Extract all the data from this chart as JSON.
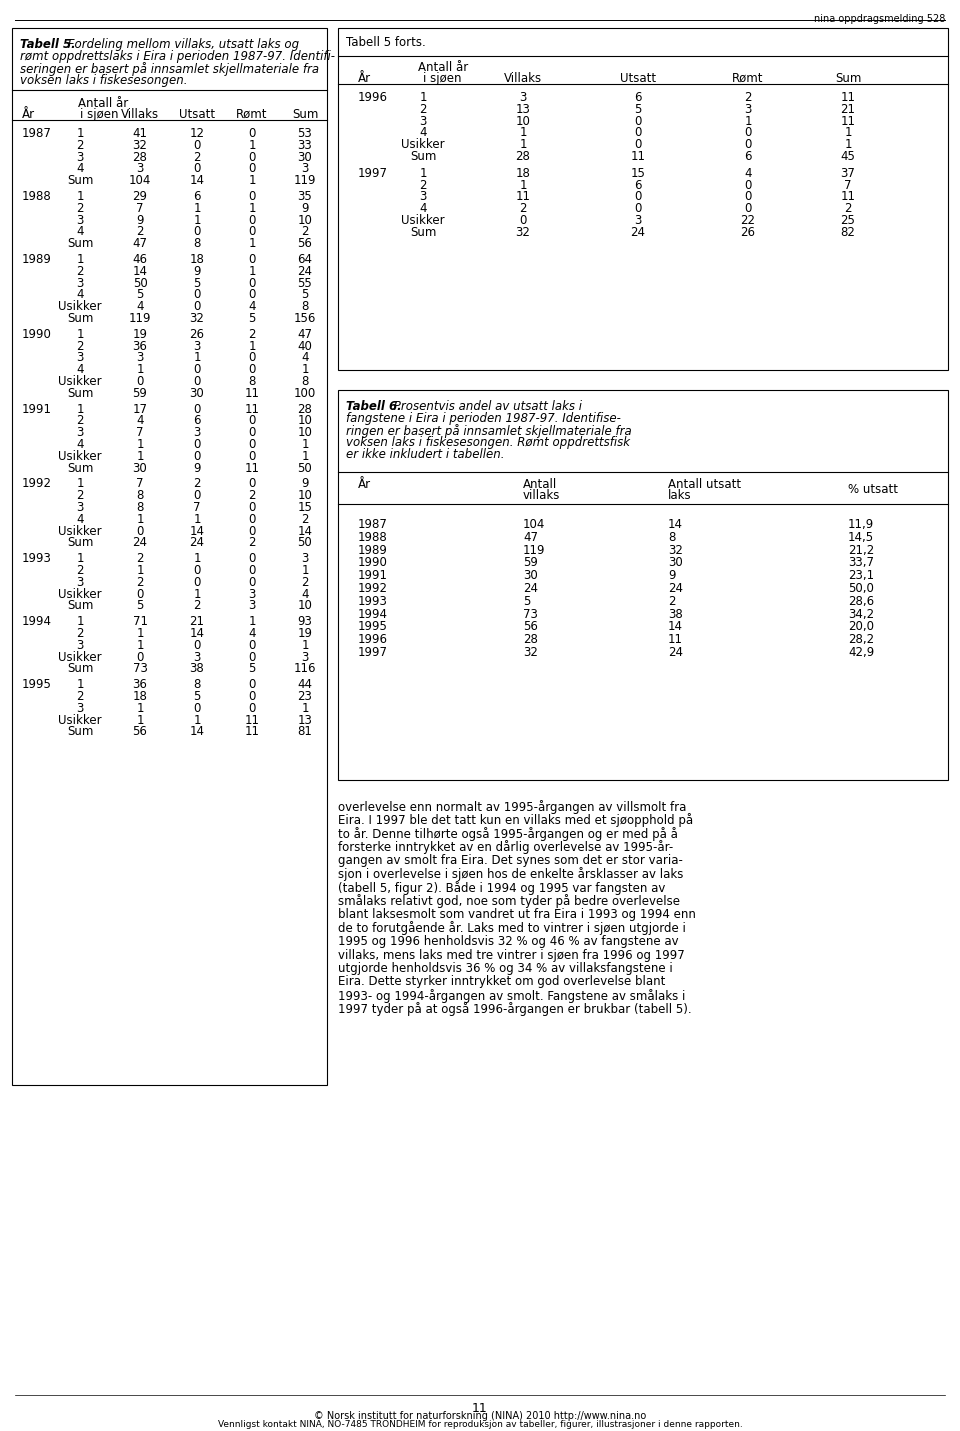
{
  "page_header": "nina oppdragsmelding 528",
  "page_number": "11",
  "footer_line1": "© Norsk institutt for naturforskning (NINA) 2010 http://www.nina.no",
  "footer_line2": "Vennligst kontakt NINA, NO-7485 TRONDHEIM for reproduksjon av tabeller, figurer, illustrasjoner i denne rapporten.",
  "table5_title_bold": "Tabell 5.",
  "table5_title_italic_lines": [
    " Fordeling mellom villaks, utsatt laks og",
    "rømt oppdrettslaks i Eira i perioden 1987-97. Identifi-",
    "seringen er basert på innsamlet skjellmateriale fra",
    "voksen laks i fiskesesongen."
  ],
  "table5_col_header_antall": "Antall år",
  "table5_col_header_i_sjoen": "i sjøen",
  "table5_col_header_villaks": "Villaks",
  "table5_col_header_utsatt": "Utsatt",
  "table5_col_header_romt": "Rømt",
  "table5_col_header_sum": "Sum",
  "table5_col_header_ar": "År",
  "table5_data": [
    {
      "year": "1987",
      "rows": [
        {
          "sjo": "1",
          "villaks": "41",
          "utsatt": "12",
          "romt": "0",
          "sum": "53"
        },
        {
          "sjo": "2",
          "villaks": "32",
          "utsatt": "0",
          "romt": "1",
          "sum": "33"
        },
        {
          "sjo": "3",
          "villaks": "28",
          "utsatt": "2",
          "romt": "0",
          "sum": "30"
        },
        {
          "sjo": "4",
          "villaks": "3",
          "utsatt": "0",
          "romt": "0",
          "sum": "3"
        }
      ],
      "sum": {
        "villaks": "104",
        "utsatt": "14",
        "romt": "1",
        "sum": "119"
      },
      "usikker": null
    },
    {
      "year": "1988",
      "rows": [
        {
          "sjo": "1",
          "villaks": "29",
          "utsatt": "6",
          "romt": "0",
          "sum": "35"
        },
        {
          "sjo": "2",
          "villaks": "7",
          "utsatt": "1",
          "romt": "1",
          "sum": "9"
        },
        {
          "sjo": "3",
          "villaks": "9",
          "utsatt": "1",
          "romt": "0",
          "sum": "10"
        },
        {
          "sjo": "4",
          "villaks": "2",
          "utsatt": "0",
          "romt": "0",
          "sum": "2"
        }
      ],
      "sum": {
        "villaks": "47",
        "utsatt": "8",
        "romt": "1",
        "sum": "56"
      },
      "usikker": null
    },
    {
      "year": "1989",
      "rows": [
        {
          "sjo": "1",
          "villaks": "46",
          "utsatt": "18",
          "romt": "0",
          "sum": "64"
        },
        {
          "sjo": "2",
          "villaks": "14",
          "utsatt": "9",
          "romt": "1",
          "sum": "24"
        },
        {
          "sjo": "3",
          "villaks": "50",
          "utsatt": "5",
          "romt": "0",
          "sum": "55"
        },
        {
          "sjo": "4",
          "villaks": "5",
          "utsatt": "0",
          "romt": "0",
          "sum": "5"
        }
      ],
      "sum": {
        "villaks": "119",
        "utsatt": "32",
        "romt": "5",
        "sum": "156"
      },
      "usikker": {
        "villaks": "4",
        "utsatt": "0",
        "romt": "4",
        "sum": "8"
      }
    },
    {
      "year": "1990",
      "rows": [
        {
          "sjo": "1",
          "villaks": "19",
          "utsatt": "26",
          "romt": "2",
          "sum": "47"
        },
        {
          "sjo": "2",
          "villaks": "36",
          "utsatt": "3",
          "romt": "1",
          "sum": "40"
        },
        {
          "sjo": "3",
          "villaks": "3",
          "utsatt": "1",
          "romt": "0",
          "sum": "4"
        },
        {
          "sjo": "4",
          "villaks": "1",
          "utsatt": "0",
          "romt": "0",
          "sum": "1"
        }
      ],
      "sum": {
        "villaks": "59",
        "utsatt": "30",
        "romt": "11",
        "sum": "100"
      },
      "usikker": {
        "villaks": "0",
        "utsatt": "0",
        "romt": "8",
        "sum": "8"
      }
    },
    {
      "year": "1991",
      "rows": [
        {
          "sjo": "1",
          "villaks": "17",
          "utsatt": "0",
          "romt": "11",
          "sum": "28"
        },
        {
          "sjo": "2",
          "villaks": "4",
          "utsatt": "6",
          "romt": "0",
          "sum": "10"
        },
        {
          "sjo": "3",
          "villaks": "7",
          "utsatt": "3",
          "romt": "0",
          "sum": "10"
        },
        {
          "sjo": "4",
          "villaks": "1",
          "utsatt": "0",
          "romt": "0",
          "sum": "1"
        }
      ],
      "sum": {
        "villaks": "30",
        "utsatt": "9",
        "romt": "11",
        "sum": "50"
      },
      "usikker": {
        "villaks": "1",
        "utsatt": "0",
        "romt": "0",
        "sum": "1"
      }
    },
    {
      "year": "1992",
      "rows": [
        {
          "sjo": "1",
          "villaks": "7",
          "utsatt": "2",
          "romt": "0",
          "sum": "9"
        },
        {
          "sjo": "2",
          "villaks": "8",
          "utsatt": "0",
          "romt": "2",
          "sum": "10"
        },
        {
          "sjo": "3",
          "villaks": "8",
          "utsatt": "7",
          "romt": "0",
          "sum": "15"
        },
        {
          "sjo": "4",
          "villaks": "1",
          "utsatt": "1",
          "romt": "0",
          "sum": "2"
        }
      ],
      "sum": {
        "villaks": "24",
        "utsatt": "24",
        "romt": "2",
        "sum": "50"
      },
      "usikker": {
        "villaks": "0",
        "utsatt": "14",
        "romt": "0",
        "sum": "14"
      }
    },
    {
      "year": "1993",
      "rows": [
        {
          "sjo": "1",
          "villaks": "2",
          "utsatt": "1",
          "romt": "0",
          "sum": "3"
        },
        {
          "sjo": "2",
          "villaks": "1",
          "utsatt": "0",
          "romt": "0",
          "sum": "1"
        },
        {
          "sjo": "3",
          "villaks": "2",
          "utsatt": "0",
          "romt": "0",
          "sum": "2"
        }
      ],
      "sum": {
        "villaks": "5",
        "utsatt": "2",
        "romt": "3",
        "sum": "10"
      },
      "usikker": {
        "villaks": "0",
        "utsatt": "1",
        "romt": "3",
        "sum": "4"
      }
    },
    {
      "year": "1994",
      "rows": [
        {
          "sjo": "1",
          "villaks": "71",
          "utsatt": "21",
          "romt": "1",
          "sum": "93"
        },
        {
          "sjo": "2",
          "villaks": "1",
          "utsatt": "14",
          "romt": "4",
          "sum": "19"
        },
        {
          "sjo": "3",
          "villaks": "1",
          "utsatt": "0",
          "romt": "0",
          "sum": "1"
        }
      ],
      "sum": {
        "villaks": "73",
        "utsatt": "38",
        "romt": "5",
        "sum": "116"
      },
      "usikker": {
        "villaks": "0",
        "utsatt": "3",
        "romt": "0",
        "sum": "3"
      }
    },
    {
      "year": "1995",
      "rows": [
        {
          "sjo": "1",
          "villaks": "36",
          "utsatt": "8",
          "romt": "0",
          "sum": "44"
        },
        {
          "sjo": "2",
          "villaks": "18",
          "utsatt": "5",
          "romt": "0",
          "sum": "23"
        },
        {
          "sjo": "3",
          "villaks": "1",
          "utsatt": "0",
          "romt": "0",
          "sum": "1"
        }
      ],
      "sum": {
        "villaks": "56",
        "utsatt": "14",
        "romt": "11",
        "sum": "81"
      },
      "usikker": {
        "villaks": "1",
        "utsatt": "1",
        "romt": "11",
        "sum": "13"
      }
    }
  ],
  "table5forts_title": "Tabell 5 forts.",
  "table5forts_data": [
    {
      "year": "1996",
      "rows": [
        {
          "sjo": "1",
          "villaks": "3",
          "utsatt": "6",
          "romt": "2",
          "sum": "11"
        },
        {
          "sjo": "2",
          "villaks": "13",
          "utsatt": "5",
          "romt": "3",
          "sum": "21"
        },
        {
          "sjo": "3",
          "villaks": "10",
          "utsatt": "0",
          "romt": "1",
          "sum": "11"
        },
        {
          "sjo": "4",
          "villaks": "1",
          "utsatt": "0",
          "romt": "0",
          "sum": "1"
        }
      ],
      "sum": {
        "villaks": "28",
        "utsatt": "11",
        "romt": "6",
        "sum": "45"
      },
      "usikker": {
        "villaks": "1",
        "utsatt": "0",
        "romt": "0",
        "sum": "1"
      }
    },
    {
      "year": "1997",
      "rows": [
        {
          "sjo": "1",
          "villaks": "18",
          "utsatt": "15",
          "romt": "4",
          "sum": "37"
        },
        {
          "sjo": "2",
          "villaks": "1",
          "utsatt": "6",
          "romt": "0",
          "sum": "7"
        },
        {
          "sjo": "3",
          "villaks": "11",
          "utsatt": "0",
          "romt": "0",
          "sum": "11"
        },
        {
          "sjo": "4",
          "villaks": "2",
          "utsatt": "0",
          "romt": "0",
          "sum": "2"
        }
      ],
      "sum": {
        "villaks": "32",
        "utsatt": "24",
        "romt": "26",
        "sum": "82"
      },
      "usikker": {
        "villaks": "0",
        "utsatt": "3",
        "romt": "22",
        "sum": "25"
      }
    }
  ],
  "table6_title_bold": "Tabell 6.",
  "table6_title_italic_lines": [
    " Prosentvis andel av utsatt laks i",
    "fangstene i Eira i perioden 1987-97. Identifise-",
    "ringen er basert på innsamlet skjellmateriale fra",
    "voksen laks i fiskesesongen. Rømt oppdrettsfisk",
    "er ikke inkludert i tabellen."
  ],
  "table6_col_ar": "År",
  "table6_col_antall_line1": "Antall",
  "table6_col_antall_line2": "villaks",
  "table6_col_utsatt_line1": "Antall utsatt",
  "table6_col_utsatt_line2": "laks",
  "table6_col_pct": "% utsatt",
  "table6_data": [
    {
      "year": "1987",
      "antall": "104",
      "utsatt": "14",
      "pct": "11,9"
    },
    {
      "year": "1988",
      "antall": "47",
      "utsatt": "8",
      "pct": "14,5"
    },
    {
      "year": "1989",
      "antall": "119",
      "utsatt": "32",
      "pct": "21,2"
    },
    {
      "year": "1990",
      "antall": "59",
      "utsatt": "30",
      "pct": "33,7"
    },
    {
      "year": "1991",
      "antall": "30",
      "utsatt": "9",
      "pct": "23,1"
    },
    {
      "year": "1992",
      "antall": "24",
      "utsatt": "24",
      "pct": "50,0"
    },
    {
      "year": "1993",
      "antall": "5",
      "utsatt": "2",
      "pct": "28,6"
    },
    {
      "year": "1994",
      "antall": "73",
      "utsatt": "38",
      "pct": "34,2"
    },
    {
      "year": "1995",
      "antall": "56",
      "utsatt": "14",
      "pct": "20,0"
    },
    {
      "year": "1996",
      "antall": "28",
      "utsatt": "11",
      "pct": "28,2"
    },
    {
      "year": "1997",
      "antall": "32",
      "utsatt": "24",
      "pct": "42,9"
    }
  ],
  "body_text_lines": [
    "overlevelse enn normalt av 1995-årgangen av villsmolt fra",
    "Eira. I 1997 ble det tatt kun en villaks med et sjøopphold på",
    "to år. Denne tilhørte også 1995-årgangen og er med på å",
    "forsterke inntrykket av en dårlig overlevelse av 1995-år-",
    "gangen av smolt fra Eira. Det synes som det er stor varia-",
    "sjon i overlevelse i sjøen hos de enkelte årsklasser av laks",
    "(tabell 5, figur 2). Både i 1994 og 1995 var fangsten av",
    "smålaks relativt god, noe som tyder på bedre overlevelse",
    "blant laksesmolt som vandret ut fra Eira i 1993 og 1994 enn",
    "de to forutgående år. Laks med to vintrer i sjøen utgjorde i",
    "1995 og 1996 henholdsvis 32 % og 46 % av fangstene av",
    "villaks, mens laks med tre vintrer i sjøen fra 1996 og 1997",
    "utgjorde henholdsvis 36 % og 34 % av villaksfangstene i",
    "Eira. Dette styrker inntrykket om god overlevelse blant",
    "1993- og 1994-årgangen av smolt. Fangstene av smålaks i",
    "1997 tyder på at også 1996-årgangen er brukbar (tabell 5)."
  ],
  "body_text_bold_parts": [
    "(tabell 5, figur 2)",
    "(tabell 5)"
  ],
  "background_color": "#ffffff",
  "text_color": "#000000",
  "fs": 8.5,
  "fs_body": 8.5,
  "fs_title": 8.5,
  "fs_small": 7.0
}
